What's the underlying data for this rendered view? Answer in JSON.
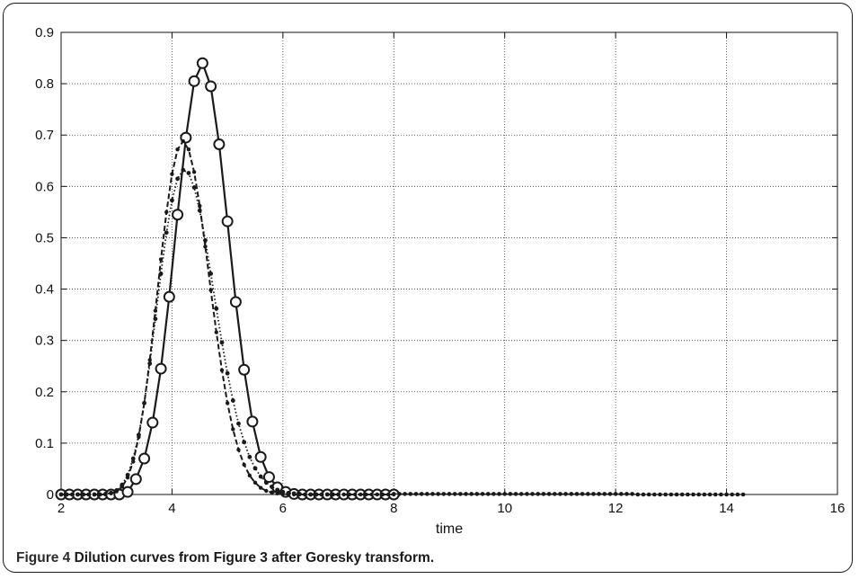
{
  "chart_data": {
    "type": "line",
    "title": "",
    "xlabel": "time",
    "ylabel": "",
    "xlim": [
      2,
      16
    ],
    "ylim": [
      0,
      0.9
    ],
    "xticks": [
      "2",
      "4",
      "6",
      "8",
      "10",
      "12",
      "14",
      "16"
    ],
    "yticks": [
      "0",
      "0.1",
      "0.2",
      "0.3",
      "0.4",
      "0.5",
      "0.6",
      "0.7",
      "0.8",
      "0.9"
    ],
    "grid": true,
    "colors": {
      "line": "#1a1a1a",
      "grid": "#333333"
    },
    "series": [
      {
        "style": "solid-circles",
        "x": [
          2.0,
          2.15,
          2.3,
          2.45,
          2.6,
          2.75,
          2.9,
          3.05,
          3.2,
          3.35,
          3.5,
          3.65,
          3.8,
          3.95,
          4.1,
          4.25,
          4.4,
          4.55,
          4.7,
          4.85,
          5.0,
          5.15,
          5.3,
          5.45,
          5.6,
          5.75,
          5.9,
          6.05,
          6.2,
          6.35,
          6.5,
          6.65,
          6.8,
          6.95,
          7.1,
          7.25,
          7.4,
          7.55,
          7.7,
          7.85,
          8.0
        ],
        "y": [
          0,
          0,
          0,
          0,
          0,
          0,
          0,
          0,
          0.005,
          0.03,
          0.07,
          0.14,
          0.245,
          0.385,
          0.545,
          0.695,
          0.805,
          0.84,
          0.795,
          0.682,
          0.532,
          0.375,
          0.243,
          0.142,
          0.073,
          0.034,
          0.014,
          0.005,
          0.001,
          0,
          0,
          0,
          0,
          0,
          0,
          0,
          0,
          0,
          0,
          0,
          0
        ]
      },
      {
        "style": "dashed-dots",
        "x": [
          2.0,
          2.1,
          2.2,
          2.3,
          2.4,
          2.5,
          2.6,
          2.7,
          2.8,
          2.9,
          3.0,
          3.1,
          3.2,
          3.3,
          3.4,
          3.5,
          3.6,
          3.7,
          3.8,
          3.9,
          4.0,
          4.1,
          4.2,
          4.3,
          4.4,
          4.5,
          4.6,
          4.7,
          4.8,
          4.9,
          5.0,
          5.1,
          5.2,
          5.3,
          5.4,
          5.5,
          5.6,
          5.7,
          5.8,
          5.9,
          6.0,
          6.1,
          6.2,
          6.3,
          6.4,
          6.5,
          6.6,
          6.7,
          6.8,
          6.9,
          7.0,
          7.1,
          7.2,
          7.3,
          7.4,
          7.5,
          7.6,
          7.7,
          7.8,
          7.9,
          8.0
        ],
        "y": [
          0,
          0,
          0,
          0,
          0,
          0,
          0,
          0,
          0,
          0.002,
          0.006,
          0.015,
          0.033,
          0.064,
          0.112,
          0.178,
          0.262,
          0.358,
          0.458,
          0.55,
          0.624,
          0.672,
          0.688,
          0.672,
          0.628,
          0.562,
          0.483,
          0.398,
          0.316,
          0.242,
          0.178,
          0.127,
          0.087,
          0.058,
          0.037,
          0.023,
          0.013,
          0.007,
          0.004,
          0.002,
          0.001,
          0,
          0,
          0,
          0,
          0,
          0,
          0,
          0,
          0,
          0,
          0,
          0,
          0,
          0,
          0,
          0,
          0,
          0,
          0,
          0
        ]
      },
      {
        "style": "dotted-dots",
        "x": [
          2.0,
          2.1,
          2.2,
          2.3,
          2.4,
          2.5,
          2.6,
          2.7,
          2.8,
          2.9,
          3.0,
          3.1,
          3.2,
          3.3,
          3.4,
          3.5,
          3.6,
          3.7,
          3.8,
          3.9,
          4.0,
          4.1,
          4.2,
          4.3,
          4.4,
          4.5,
          4.6,
          4.7,
          4.8,
          4.9,
          5.0,
          5.1,
          5.2,
          5.3,
          5.4,
          5.5,
          5.6,
          5.7,
          5.8,
          5.9,
          6.0,
          6.1,
          6.2,
          6.3,
          6.4,
          6.5,
          6.6,
          6.7,
          6.8,
          6.9,
          7.0
        ],
        "y": [
          0,
          0,
          0,
          0,
          0,
          0,
          0,
          0,
          0.001,
          0.003,
          0.008,
          0.019,
          0.038,
          0.07,
          0.116,
          0.178,
          0.255,
          0.342,
          0.43,
          0.51,
          0.573,
          0.615,
          0.632,
          0.626,
          0.598,
          0.553,
          0.495,
          0.43,
          0.362,
          0.296,
          0.236,
          0.183,
          0.138,
          0.102,
          0.073,
          0.051,
          0.035,
          0.023,
          0.015,
          0.009,
          0.005,
          0.003,
          0.002,
          0.001,
          0,
          0,
          0,
          0,
          0,
          0,
          0
        ]
      },
      {
        "style": "dots",
        "x": [
          8.0,
          8.1,
          8.2,
          8.3,
          8.4,
          8.5,
          8.6,
          8.7,
          8.8,
          8.9,
          9.0,
          9.1,
          9.2,
          9.3,
          9.4,
          9.5,
          9.6,
          9.7,
          9.8,
          9.9,
          10.0,
          10.1,
          10.2,
          10.3,
          10.4,
          10.5,
          10.6,
          10.7,
          10.8,
          10.9,
          11.0,
          11.1,
          11.2,
          11.3,
          11.4,
          11.5,
          11.6,
          11.7,
          11.8,
          11.9,
          12.0,
          12.1,
          12.2,
          12.3,
          12.4,
          12.5,
          12.6,
          12.7,
          12.8,
          12.9,
          13.0,
          13.1,
          13.2,
          13.3,
          13.4,
          13.5,
          13.6,
          13.7,
          13.8,
          13.9,
          14.0,
          14.1,
          14.2,
          14.3
        ],
        "y": [
          0.001,
          0.001,
          0.001,
          0.001,
          0.001,
          0.001,
          0.001,
          0.001,
          0.001,
          0.001,
          0.001,
          0.001,
          0.001,
          0.001,
          0.001,
          0.001,
          0.001,
          0.001,
          0.001,
          0.001,
          0.001,
          0.001,
          0.001,
          0.001,
          0.001,
          0.001,
          0.001,
          0.001,
          0.001,
          0.001,
          0.001,
          0.001,
          0.001,
          0.001,
          0.001,
          0.001,
          0.001,
          0.001,
          0.001,
          0.001,
          0.001,
          0.001,
          0.001,
          0.001,
          0,
          0,
          0,
          0,
          0,
          0,
          0,
          0,
          0,
          0,
          0,
          0,
          0,
          0,
          0,
          0,
          0,
          0,
          0,
          0
        ]
      }
    ]
  },
  "caption": {
    "label": "Figure 4",
    "text": "Dilution curves from Figure 3 after Goresky transform."
  }
}
